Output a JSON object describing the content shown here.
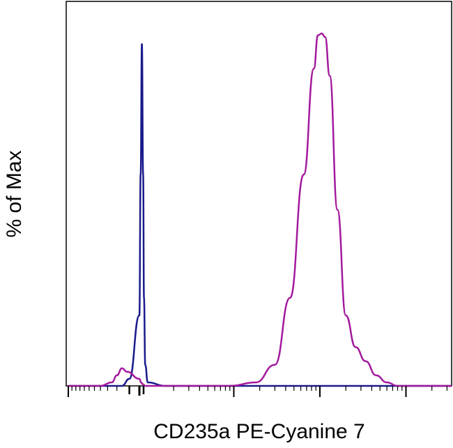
{
  "chart_data": {
    "type": "line",
    "title": "",
    "xlabel": "CD235a PE-Cyanine 7",
    "ylabel": "% of Max",
    "x_scale": "log",
    "xlim": [
      -1000,
      1000000
    ],
    "ylim": [
      0,
      100
    ],
    "x_tick_labels": [],
    "y_tick_labels": [],
    "grid": false,
    "legend": "none",
    "series": [
      {
        "color": "#1a1a8c",
        "x": [
          -1000,
          -60,
          -20,
          0,
          15,
          30,
          45,
          55,
          70,
          100,
          160,
          1000000
        ],
        "y": [
          0,
          0,
          2,
          20,
          60,
          97,
          60,
          25,
          6,
          1,
          0,
          0
        ]
      },
      {
        "color": "#a3199e",
        "x": [
          -1000,
          -300,
          -150,
          -100,
          -60,
          -30,
          0,
          20,
          40,
          70,
          120,
          400,
          900,
          1800,
          3000,
          4500,
          6500,
          8500,
          9500,
          10500,
          11500,
          13000,
          16000,
          20000,
          26000,
          34000,
          45000,
          60000,
          80000,
          1000000
        ],
        "y": [
          0,
          0,
          1,
          3,
          5,
          4,
          2,
          1,
          0.5,
          0,
          0,
          0,
          0,
          1,
          6,
          25,
          60,
          90,
          99.5,
          100,
          99,
          88,
          50,
          20,
          11,
          7,
          3,
          1,
          0,
          0
        ]
      }
    ]
  }
}
